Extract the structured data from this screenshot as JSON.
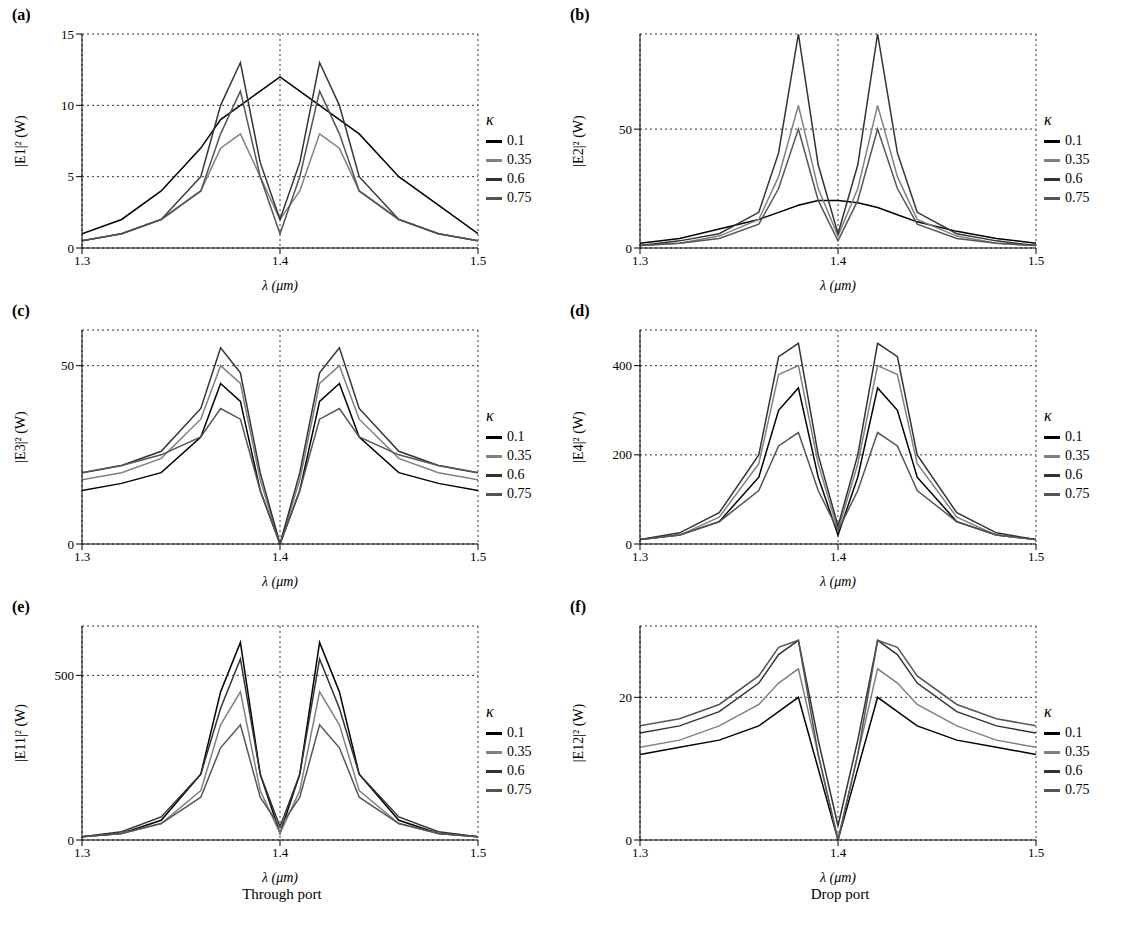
{
  "chart_data": [
    {
      "type": "line",
      "title": "(a)",
      "x_label": "λ (μm)",
      "y_label": "|E1|² (W)",
      "legend_title": "κ",
      "legend": "right",
      "grid": true,
      "x": [
        1.3,
        1.32,
        1.34,
        1.36,
        1.37,
        1.38,
        1.39,
        1.4,
        1.41,
        1.42,
        1.43,
        1.44,
        1.46,
        1.48,
        1.5
      ],
      "xlim": [
        1.3,
        1.5
      ],
      "xticks": [
        1.3,
        1.4,
        1.5
      ],
      "ylim": [
        0,
        15
      ],
      "yticks": [
        0,
        5,
        10,
        15
      ],
      "series": [
        {
          "name": "0.1",
          "color": "#000000",
          "values": [
            1,
            2,
            4,
            7,
            9,
            10,
            11,
            12,
            11,
            10,
            9,
            8,
            5,
            3,
            1
          ]
        },
        {
          "name": "0.35",
          "color": "#808080",
          "values": [
            0.5,
            1,
            2,
            4,
            7,
            8,
            5,
            2,
            4,
            8,
            7,
            4,
            2,
            1,
            0.5
          ]
        },
        {
          "name": "0.6",
          "color": "#333333",
          "values": [
            0.5,
            1,
            2,
            5,
            10,
            13,
            6,
            2,
            6,
            13,
            10,
            5,
            2,
            1,
            0.5
          ]
        },
        {
          "name": "0.75",
          "color": "#555555",
          "values": [
            0.5,
            1,
            2,
            4,
            8,
            11,
            5,
            1,
            5,
            11,
            8,
            4,
            2,
            1,
            0.5
          ]
        }
      ]
    },
    {
      "type": "line",
      "title": "(b)",
      "x_label": "λ (μm)",
      "y_label": "|E2|² (W)",
      "legend_title": "κ",
      "legend": "right",
      "grid": true,
      "x": [
        1.3,
        1.32,
        1.34,
        1.36,
        1.37,
        1.38,
        1.39,
        1.4,
        1.41,
        1.42,
        1.43,
        1.44,
        1.46,
        1.48,
        1.5
      ],
      "xlim": [
        1.3,
        1.5
      ],
      "xticks": [
        1.3,
        1.4,
        1.5
      ],
      "ylim": [
        0,
        90
      ],
      "yticks": [
        0,
        50
      ],
      "series": [
        {
          "name": "0.1",
          "color": "#000000",
          "values": [
            2,
            4,
            8,
            12,
            15,
            18,
            20,
            20,
            19,
            17,
            14,
            11,
            7,
            4,
            2
          ]
        },
        {
          "name": "0.35",
          "color": "#808080",
          "values": [
            1,
            2,
            5,
            12,
            30,
            60,
            25,
            5,
            25,
            60,
            30,
            12,
            5,
            2,
            1
          ]
        },
        {
          "name": "0.6",
          "color": "#333333",
          "values": [
            1,
            3,
            6,
            15,
            40,
            90,
            35,
            6,
            35,
            90,
            40,
            15,
            6,
            3,
            1
          ]
        },
        {
          "name": "0.75",
          "color": "#555555",
          "values": [
            1,
            2,
            4,
            10,
            25,
            50,
            20,
            3,
            20,
            50,
            25,
            10,
            4,
            2,
            1
          ]
        }
      ]
    },
    {
      "type": "line",
      "title": "(c)",
      "x_label": "λ (μm)",
      "y_label": "|E3|² (W)",
      "legend_title": "κ",
      "legend": "right",
      "grid": true,
      "x": [
        1.3,
        1.32,
        1.34,
        1.36,
        1.37,
        1.38,
        1.39,
        1.4,
        1.41,
        1.42,
        1.43,
        1.44,
        1.46,
        1.48,
        1.5
      ],
      "xlim": [
        1.3,
        1.5
      ],
      "xticks": [
        1.3,
        1.4,
        1.5
      ],
      "ylim": [
        0,
        60
      ],
      "yticks": [
        0,
        50
      ],
      "series": [
        {
          "name": "0.1",
          "color": "#000000",
          "values": [
            15,
            17,
            20,
            30,
            45,
            40,
            15,
            0,
            15,
            40,
            45,
            30,
            20,
            17,
            15
          ]
        },
        {
          "name": "0.35",
          "color": "#808080",
          "values": [
            18,
            20,
            24,
            35,
            50,
            45,
            18,
            0,
            18,
            45,
            50,
            35,
            24,
            20,
            18
          ]
        },
        {
          "name": "0.6",
          "color": "#333333",
          "values": [
            20,
            22,
            26,
            38,
            55,
            48,
            20,
            0,
            20,
            48,
            55,
            38,
            26,
            22,
            20
          ]
        },
        {
          "name": "0.75",
          "color": "#555555",
          "values": [
            20,
            22,
            25,
            30,
            38,
            35,
            15,
            0,
            15,
            35,
            38,
            30,
            25,
            22,
            20
          ]
        }
      ]
    },
    {
      "type": "line",
      "title": "(d)",
      "x_label": "λ (μm)",
      "y_label": "|E4|² (W)",
      "legend_title": "κ",
      "legend": "right",
      "grid": true,
      "x": [
        1.3,
        1.32,
        1.34,
        1.36,
        1.37,
        1.38,
        1.39,
        1.4,
        1.41,
        1.42,
        1.43,
        1.44,
        1.46,
        1.48,
        1.5
      ],
      "xlim": [
        1.3,
        1.5
      ],
      "xticks": [
        1.3,
        1.4,
        1.5
      ],
      "ylim": [
        0,
        480
      ],
      "yticks": [
        0,
        200,
        400
      ],
      "series": [
        {
          "name": "0.1",
          "color": "#000000",
          "values": [
            10,
            20,
            50,
            150,
            300,
            350,
            150,
            20,
            150,
            350,
            300,
            150,
            50,
            20,
            10
          ]
        },
        {
          "name": "0.35",
          "color": "#808080",
          "values": [
            10,
            20,
            60,
            180,
            380,
            400,
            180,
            30,
            180,
            400,
            380,
            180,
            60,
            20,
            10
          ]
        },
        {
          "name": "0.6",
          "color": "#333333",
          "values": [
            10,
            25,
            70,
            200,
            420,
            450,
            200,
            40,
            200,
            450,
            420,
            200,
            70,
            25,
            10
          ]
        },
        {
          "name": "0.75",
          "color": "#555555",
          "values": [
            10,
            20,
            50,
            120,
            220,
            250,
            120,
            30,
            120,
            250,
            220,
            120,
            50,
            20,
            10
          ]
        }
      ]
    },
    {
      "type": "line",
      "title": "(e)",
      "x_label": "λ (μm)",
      "y_label": "|E11|² (W)",
      "legend_title": "κ",
      "legend": "right",
      "grid": true,
      "caption": "Through port",
      "x": [
        1.3,
        1.32,
        1.34,
        1.36,
        1.37,
        1.38,
        1.39,
        1.4,
        1.41,
        1.42,
        1.43,
        1.44,
        1.46,
        1.48,
        1.5
      ],
      "xlim": [
        1.3,
        1.5
      ],
      "xticks": [
        1.3,
        1.4,
        1.5
      ],
      "ylim": [
        0,
        650
      ],
      "yticks": [
        0,
        500
      ],
      "series": [
        {
          "name": "0.1",
          "color": "#000000",
          "values": [
            10,
            20,
            60,
            200,
            450,
            600,
            200,
            20,
            200,
            600,
            450,
            200,
            60,
            20,
            10
          ]
        },
        {
          "name": "0.35",
          "color": "#808080",
          "values": [
            10,
            20,
            50,
            150,
            350,
            450,
            150,
            20,
            150,
            450,
            350,
            150,
            50,
            20,
            10
          ]
        },
        {
          "name": "0.6",
          "color": "#333333",
          "values": [
            10,
            25,
            70,
            200,
            400,
            550,
            200,
            40,
            200,
            550,
            400,
            200,
            70,
            25,
            10
          ]
        },
        {
          "name": "0.75",
          "color": "#555555",
          "values": [
            10,
            20,
            50,
            130,
            280,
            350,
            130,
            40,
            130,
            350,
            280,
            130,
            50,
            20,
            10
          ]
        }
      ]
    },
    {
      "type": "line",
      "title": "(f)",
      "x_label": "λ (μm)",
      "y_label": "|E12|² (W)",
      "legend_title": "κ",
      "legend": "right",
      "grid": true,
      "caption": "Drop port",
      "x": [
        1.3,
        1.32,
        1.34,
        1.36,
        1.37,
        1.38,
        1.39,
        1.4,
        1.41,
        1.42,
        1.43,
        1.44,
        1.46,
        1.48,
        1.5
      ],
      "xlim": [
        1.3,
        1.5
      ],
      "xticks": [
        1.3,
        1.4,
        1.5
      ],
      "ylim": [
        0,
        30
      ],
      "yticks": [
        0,
        20
      ],
      "series": [
        {
          "name": "0.1",
          "color": "#000000",
          "values": [
            12,
            13,
            14,
            16,
            18,
            20,
            10,
            0,
            10,
            20,
            18,
            16,
            14,
            13,
            12
          ]
        },
        {
          "name": "0.35",
          "color": "#808080",
          "values": [
            13,
            14,
            16,
            19,
            22,
            24,
            12,
            0,
            12,
            24,
            22,
            19,
            16,
            14,
            13
          ]
        },
        {
          "name": "0.6",
          "color": "#333333",
          "values": [
            15,
            16,
            18,
            22,
            26,
            28,
            14,
            2,
            14,
            28,
            26,
            22,
            18,
            16,
            15
          ]
        },
        {
          "name": "0.75",
          "color": "#555555",
          "values": [
            16,
            17,
            19,
            23,
            27,
            28,
            12,
            0,
            12,
            28,
            27,
            23,
            19,
            17,
            16
          ]
        }
      ]
    }
  ]
}
